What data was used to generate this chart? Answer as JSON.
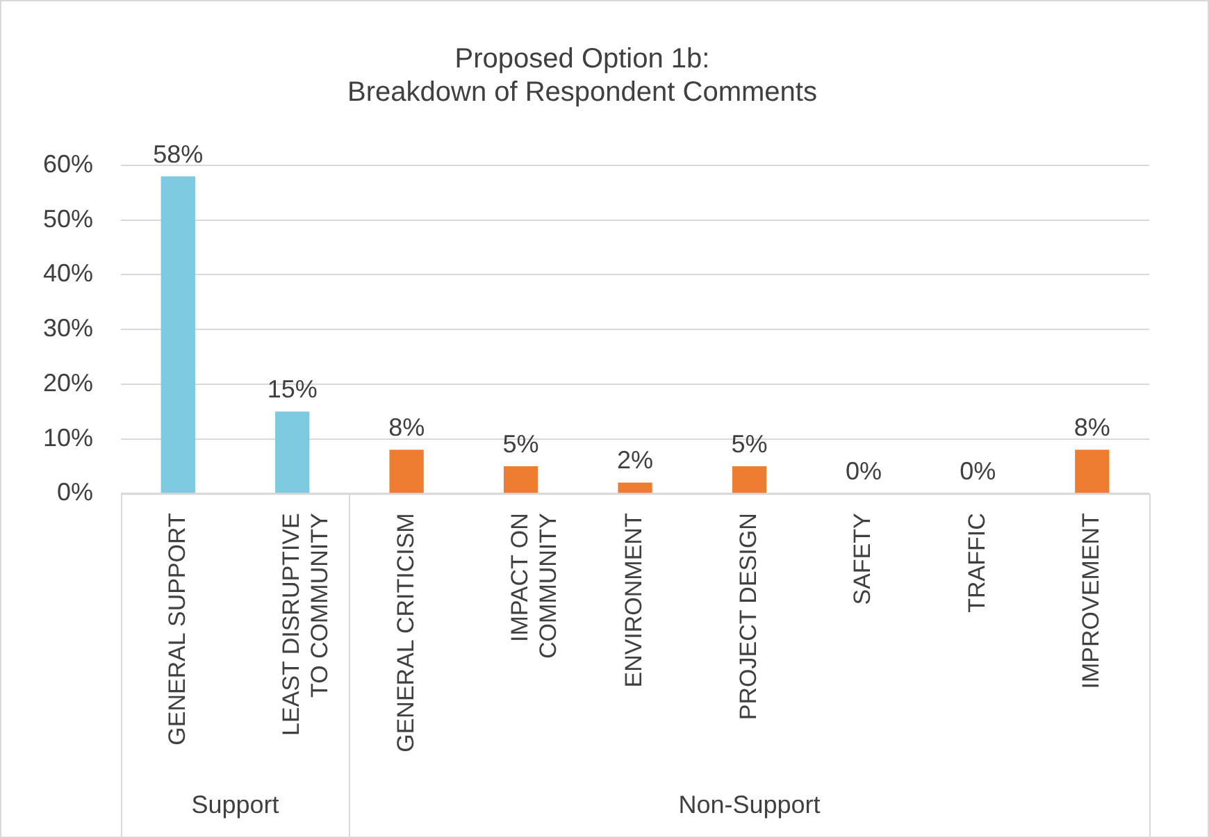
{
  "chart_data": {
    "type": "bar",
    "title": "Proposed Option 1b:\nBreakdown of Respondent Comments",
    "categories": [
      "GENERAL SUPPORT",
      "LEAST DISRUPTIVE TO COMMUNITY",
      "GENERAL CRITICISM",
      "IMPACT ON COMMUNITY",
      "ENVIRONMENT",
      "PROJECT DESIGN",
      "SAFETY",
      "TRAFFIC",
      "IMPROVEMENT"
    ],
    "values": [
      58,
      15,
      8,
      5,
      2,
      5,
      0,
      0,
      8
    ],
    "colors": [
      "#7ecae0",
      "#7ecae0",
      "#ee7d32",
      "#ee7d32",
      "#ee7d32",
      "#ee7d32",
      "#ee7d32",
      "#ee7d32",
      "#ee7d32"
    ],
    "value_labels": [
      "58%",
      "15%",
      "8%",
      "5%",
      "2%",
      "5%",
      "0%",
      "0%",
      "8%"
    ],
    "ylim": [
      0,
      60
    ],
    "yticks": [
      {
        "value": 0,
        "label": "0%"
      },
      {
        "value": 10,
        "label": "10%"
      },
      {
        "value": 20,
        "label": "20%"
      },
      {
        "value": 30,
        "label": "30%"
      },
      {
        "value": 40,
        "label": "40%"
      },
      {
        "value": 50,
        "label": "50%"
      },
      {
        "value": 60,
        "label": "60%"
      }
    ],
    "grid": "y",
    "annotations": [
      "Support",
      "Non-Support"
    ]
  }
}
